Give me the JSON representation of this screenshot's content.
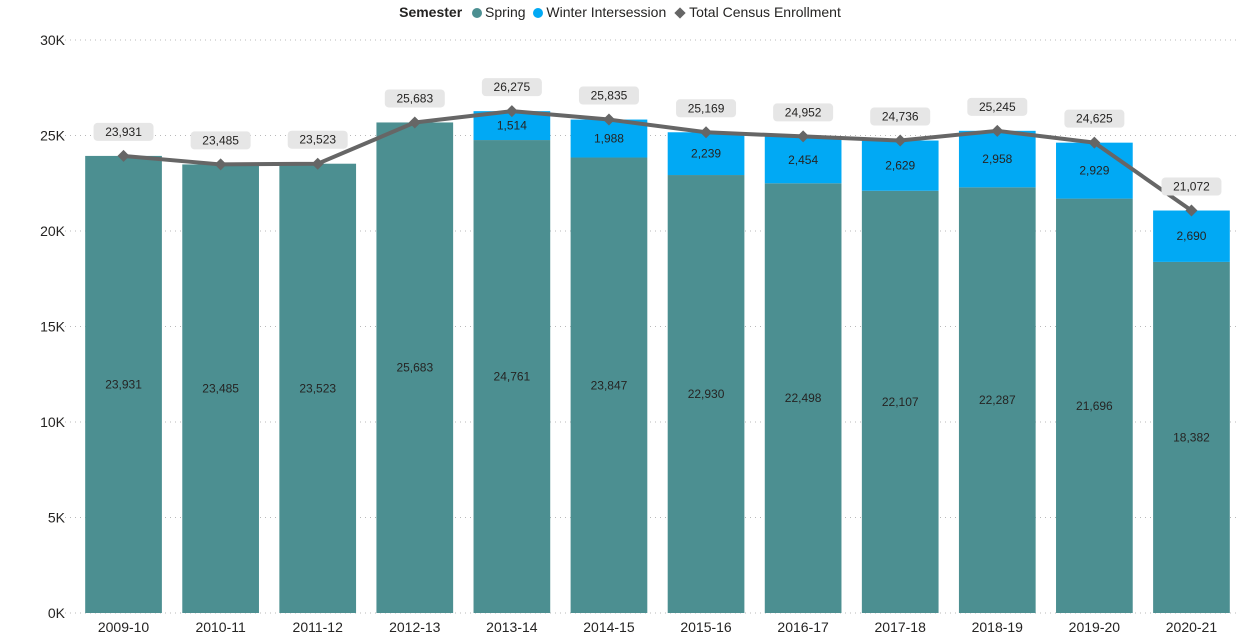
{
  "legend": {
    "title": "Semester",
    "items": [
      {
        "label": "Spring",
        "marker": "circle",
        "color": "#4C8F91"
      },
      {
        "label": "Winter Intersession",
        "marker": "circle",
        "color": "#01A9F4"
      },
      {
        "label": "Total Census Enrollment",
        "marker": "diamond",
        "color": "#666666"
      }
    ]
  },
  "chart_data": {
    "type": "bar",
    "stacked": true,
    "categories": [
      "2009-10",
      "2010-11",
      "2011-12",
      "2012-13",
      "2013-14",
      "2014-15",
      "2015-16",
      "2016-17",
      "2017-18",
      "2018-19",
      "2019-20",
      "2020-21"
    ],
    "series": [
      {
        "name": "Spring",
        "type": "bar",
        "color": "#4C8F91",
        "values": [
          23931,
          23485,
          23523,
          25683,
          24761,
          23847,
          22930,
          22498,
          22107,
          22287,
          21696,
          18382
        ],
        "labels": [
          "23,931",
          "23,485",
          "23,523",
          "25,683",
          "24,761",
          "23,847",
          "22,930",
          "22,498",
          "22,107",
          "22,287",
          "21,696",
          "18,382"
        ]
      },
      {
        "name": "Winter Intersession",
        "type": "bar",
        "color": "#01A9F4",
        "values": [
          0,
          0,
          0,
          0,
          1514,
          1988,
          2239,
          2454,
          2629,
          2958,
          2929,
          2690
        ],
        "labels": [
          "",
          "",
          "",
          "",
          "1,514",
          "1,988",
          "2,239",
          "2,454",
          "2,629",
          "2,958",
          "2,929",
          "2,690"
        ]
      },
      {
        "name": "Total Census Enrollment",
        "type": "line",
        "marker": "diamond",
        "color": "#666666",
        "values": [
          23931,
          23485,
          23523,
          25683,
          26275,
          25835,
          25169,
          24952,
          24736,
          25245,
          24625,
          21072
        ],
        "labels": [
          "23,931",
          "23,485",
          "23,523",
          "25,683",
          "26,275",
          "25,835",
          "25,169",
          "24,952",
          "24,736",
          "25,245",
          "24,625",
          "21,072"
        ]
      }
    ],
    "ylim": [
      0,
      30000
    ],
    "yticks": [
      0,
      5000,
      10000,
      15000,
      20000,
      25000,
      30000
    ],
    "ytick_labels": [
      "0K",
      "5K",
      "10K",
      "15K",
      "20K",
      "25K",
      "30K"
    ],
    "grid": "horizontal-dotted",
    "legend_position": "top-center"
  }
}
